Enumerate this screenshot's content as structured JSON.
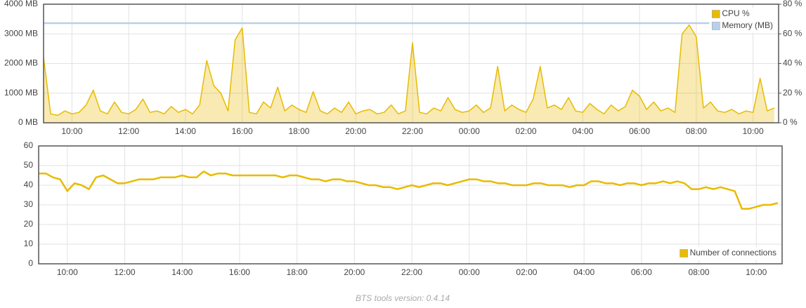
{
  "chart_data": [
    {
      "type": "line",
      "x": [
        9,
        9.25,
        9.5,
        9.75,
        10,
        10.25,
        10.5,
        10.75,
        11,
        11.25,
        11.5,
        11.75,
        12,
        12.25,
        12.5,
        12.75,
        13,
        13.25,
        13.5,
        13.75,
        14,
        14.25,
        14.5,
        14.75,
        15,
        15.25,
        15.5,
        15.75,
        16,
        16.25,
        16.5,
        16.75,
        17,
        17.25,
        17.5,
        17.75,
        18,
        18.25,
        18.5,
        18.75,
        19,
        19.25,
        19.5,
        19.75,
        20,
        20.25,
        20.5,
        20.75,
        21,
        21.25,
        21.5,
        21.75,
        22,
        22.25,
        22.5,
        22.75,
        23,
        23.25,
        23.5,
        23.75,
        24,
        24.25,
        24.5,
        24.75,
        25,
        25.25,
        25.5,
        25.75,
        26,
        26.25,
        26.5,
        26.75,
        27,
        27.25,
        27.5,
        27.75,
        28,
        28.25,
        28.5,
        28.75,
        29,
        29.25,
        29.5,
        29.75,
        30,
        30.25,
        30.5,
        30.75,
        31,
        31.25,
        31.5,
        31.75,
        32,
        32.25,
        32.5,
        32.75,
        33,
        33.25,
        33.5,
        33.75,
        34,
        34.25,
        34.5,
        34.75
      ],
      "series": [
        {
          "name": "CPU %",
          "color": "#e8bb00",
          "area": true,
          "axis": "y2",
          "values": [
            44,
            6,
            5,
            8,
            6,
            7,
            12,
            22,
            8,
            6,
            14,
            7,
            6,
            9,
            16,
            7,
            8,
            6,
            11,
            7,
            9,
            6,
            12,
            42,
            25,
            20,
            8,
            56,
            64,
            7,
            6,
            14,
            10,
            24,
            8,
            12,
            9,
            7,
            21,
            8,
            6,
            10,
            7,
            14,
            6,
            8,
            9,
            6,
            7,
            12,
            6,
            8,
            54,
            7,
            6,
            10,
            8,
            17,
            9,
            7,
            8,
            12,
            7,
            10,
            38,
            8,
            12,
            9,
            7,
            16,
            38,
            10,
            12,
            9,
            17,
            8,
            7,
            13,
            9,
            6,
            12,
            8,
            11,
            22,
            18,
            9,
            14,
            8,
            10,
            7,
            60,
            66,
            58,
            10,
            14,
            8,
            7,
            9,
            6,
            8,
            7,
            30,
            8,
            10
          ]
        },
        {
          "name": "Memory (MB)",
          "color": "#b9d0ea",
          "area": false,
          "values": [
            3360,
            3360,
            3360,
            3360,
            3360,
            3360,
            3360,
            3360,
            3360,
            3360,
            3360,
            3360,
            3360,
            3360,
            3360,
            3360,
            3360,
            3360,
            3360,
            3360,
            3360,
            3360,
            3360,
            3360,
            3360,
            3360,
            3360,
            3360,
            3360,
            3360,
            3360,
            3360,
            3360,
            3360,
            3360,
            3360,
            3360,
            3360,
            3360,
            3360,
            3360,
            3360,
            3360,
            3360,
            3360,
            3360,
            3360,
            3360,
            3360,
            3360,
            3360,
            3360,
            3360,
            3360,
            3360,
            3360,
            3360,
            3360,
            3360,
            3360,
            3360,
            3360,
            3360,
            3360,
            3360,
            3360,
            3360,
            3360,
            3360,
            3360,
            3360,
            3360,
            3360,
            3360,
            3360,
            3360,
            3360,
            3360,
            3360,
            3360,
            3360,
            3360,
            3360,
            3360,
            3360,
            3360,
            3360,
            3360,
            3360,
            3360,
            3360,
            3360,
            3360,
            3360,
            3360,
            3360,
            3360,
            3360,
            3360,
            3360,
            3360,
            3360,
            3360,
            3360
          ]
        }
      ],
      "xlim": [
        9,
        34.9
      ],
      "xticks": [
        {
          "value": 10,
          "label": "10:00"
        },
        {
          "value": 12,
          "label": "12:00"
        },
        {
          "value": 14,
          "label": "14:00"
        },
        {
          "value": 16,
          "label": "16:00"
        },
        {
          "value": 18,
          "label": "18:00"
        },
        {
          "value": 20,
          "label": "20:00"
        },
        {
          "value": 22,
          "label": "22:00"
        },
        {
          "value": 24,
          "label": "00:00"
        },
        {
          "value": 26,
          "label": "02:00"
        },
        {
          "value": 28,
          "label": "04:00"
        },
        {
          "value": 30,
          "label": "06:00"
        },
        {
          "value": 32,
          "label": "08:00"
        },
        {
          "value": 34,
          "label": "10:00"
        }
      ],
      "ylim": [
        0,
        4000
      ],
      "yticks": [
        {
          "value": 0,
          "label": "0 MB"
        },
        {
          "value": 1000,
          "label": "1000 MB"
        },
        {
          "value": 2000,
          "label": "2000 MB"
        },
        {
          "value": 3000,
          "label": "3000 MB"
        },
        {
          "value": 4000,
          "label": "4000 MB"
        }
      ],
      "y2lim": [
        0,
        80
      ],
      "y2ticks": [
        {
          "value": 0,
          "label": "0 %"
        },
        {
          "value": 20,
          "label": "20 %"
        },
        {
          "value": 40,
          "label": "40 %"
        },
        {
          "value": 60,
          "label": "60 %"
        },
        {
          "value": 80,
          "label": "80 %"
        }
      ],
      "grid": true,
      "legend": "upper right"
    },
    {
      "type": "line",
      "x": [
        9,
        9.25,
        9.5,
        9.75,
        10,
        10.25,
        10.5,
        10.75,
        11,
        11.25,
        11.5,
        11.75,
        12,
        12.25,
        12.5,
        12.75,
        13,
        13.25,
        13.5,
        13.75,
        14,
        14.25,
        14.5,
        14.75,
        15,
        15.25,
        15.5,
        15.75,
        16,
        16.25,
        16.5,
        16.75,
        17,
        17.25,
        17.5,
        17.75,
        18,
        18.25,
        18.5,
        18.75,
        19,
        19.25,
        19.5,
        19.75,
        20,
        20.25,
        20.5,
        20.75,
        21,
        21.25,
        21.5,
        21.75,
        22,
        22.25,
        22.5,
        22.75,
        23,
        23.25,
        23.5,
        23.75,
        24,
        24.25,
        24.5,
        24.75,
        25,
        25.25,
        25.5,
        25.75,
        26,
        26.25,
        26.5,
        26.75,
        27,
        27.25,
        27.5,
        27.75,
        28,
        28.25,
        28.5,
        28.75,
        29,
        29.25,
        29.5,
        29.75,
        30,
        30.25,
        30.5,
        30.75,
        31,
        31.25,
        31.5,
        31.75,
        32,
        32.25,
        32.5,
        32.75,
        33,
        33.25,
        33.5,
        33.75,
        34,
        34.25,
        34.5,
        34.75
      ],
      "series": [
        {
          "name": "Number of connections",
          "color": "#e8bb00",
          "area": false,
          "values": [
            46,
            46,
            44,
            43,
            37,
            41,
            40,
            38,
            44,
            45,
            43,
            41,
            41,
            42,
            43,
            43,
            43,
            44,
            44,
            44,
            45,
            44,
            44,
            47,
            45,
            46,
            46,
            45,
            45,
            45,
            45,
            45,
            45,
            45,
            44,
            45,
            45,
            44,
            43,
            43,
            42,
            43,
            43,
            42,
            42,
            41,
            40,
            40,
            39,
            39,
            38,
            39,
            40,
            39,
            40,
            41,
            41,
            40,
            41,
            42,
            43,
            43,
            42,
            42,
            41,
            41,
            40,
            40,
            40,
            41,
            41,
            40,
            40,
            40,
            39,
            40,
            40,
            42,
            42,
            41,
            41,
            40,
            41,
            41,
            40,
            41,
            41,
            42,
            41,
            42,
            41,
            38,
            38,
            39,
            38,
            39,
            38,
            37,
            28,
            28,
            29,
            30,
            30,
            31
          ]
        }
      ],
      "xlim": [
        9,
        34.9
      ],
      "xticks": [
        {
          "value": 10,
          "label": "10:00"
        },
        {
          "value": 12,
          "label": "12:00"
        },
        {
          "value": 14,
          "label": "14:00"
        },
        {
          "value": 16,
          "label": "16:00"
        },
        {
          "value": 18,
          "label": "18:00"
        },
        {
          "value": 20,
          "label": "20:00"
        },
        {
          "value": 22,
          "label": "22:00"
        },
        {
          "value": 24,
          "label": "00:00"
        },
        {
          "value": 26,
          "label": "02:00"
        },
        {
          "value": 28,
          "label": "04:00"
        },
        {
          "value": 30,
          "label": "06:00"
        },
        {
          "value": 32,
          "label": "08:00"
        },
        {
          "value": 34,
          "label": "10:00"
        }
      ],
      "ylim": [
        0,
        60
      ],
      "yticks": [
        0,
        10,
        20,
        30,
        40,
        50,
        60
      ],
      "grid": true,
      "legend": "lower right"
    }
  ],
  "footer": "BTS tools version: 0.4.14"
}
